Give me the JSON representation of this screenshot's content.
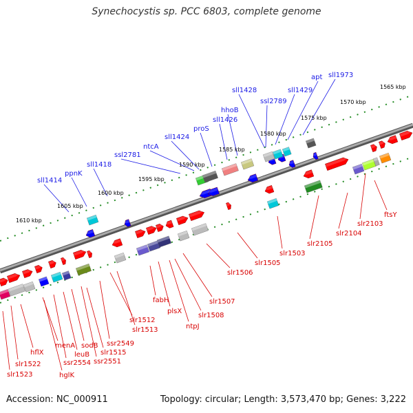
{
  "title": "Synechocystis sp. PCC 6803, complete genome",
  "accession_label": "Accession: NC_000911",
  "topology_label": "Topology: circular; Length: 3,573,470 bp; Genes: 3,222",
  "colors": {
    "forward": "#ff0000",
    "reverse": "#0000ff",
    "label_top": "#1a1ae6",
    "label_bottom": "#d80000",
    "tick": "#228b22",
    "backbone": "#808080"
  },
  "scale_labels": [
    "1565 kbp",
    "1570 kbp",
    "1575 kbp",
    "1580 kbp",
    "1585 kbp",
    "1590 kbp",
    "1595 kbp",
    "1600 kbp",
    "1605 kbp",
    "1610 kbp"
  ],
  "top_labels": [
    "sll1973",
    "apt",
    "sll1429",
    "ssl2789",
    "sll1428",
    "hhoB",
    "sll1426",
    "proS",
    "sll1424",
    "ntcA",
    "ssl2781",
    "sll1418",
    "ppnK",
    "sll1414"
  ],
  "bottom_labels": [
    "ftsY",
    "slr2103",
    "slr2104",
    "slr2105",
    "slr1503",
    "slr1505",
    "slr1506",
    "slr1507",
    "slr1508",
    "ntpJ",
    "plsX",
    "fabH",
    "slr1513",
    "slr1512",
    "ssr2549",
    "slr1515",
    "ssr2551",
    "sodB",
    "leuB",
    "ssr2554",
    "menA",
    "hglK",
    "hflX",
    "slr1522",
    "slr1523"
  ]
}
